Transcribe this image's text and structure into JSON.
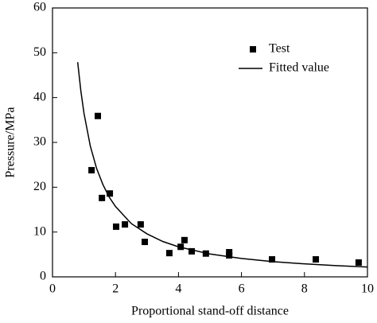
{
  "chart_data": {
    "type": "scatter",
    "xlabel": "Proportional stand-off distance",
    "ylabel": "Pressure/MPa",
    "xlim": [
      0,
      10
    ],
    "ylim": [
      0,
      60
    ],
    "xticks": [
      0,
      2,
      4,
      6,
      8,
      10
    ],
    "yticks": [
      0,
      10,
      20,
      30,
      40,
      50,
      60
    ],
    "legend": "upper right",
    "series": [
      {
        "name": "Test",
        "type": "scatter",
        "color": "#000000",
        "x": [
          1.24,
          1.44,
          1.57,
          1.82,
          2.02,
          2.3,
          2.8,
          2.93,
          3.71,
          4.07,
          4.19,
          4.42,
          4.87,
          5.61,
          5.61,
          6.97,
          8.36,
          9.72
        ],
        "values": [
          23.8,
          35.9,
          17.6,
          18.6,
          11.2,
          11.7,
          11.7,
          7.8,
          5.3,
          6.7,
          8.2,
          5.7,
          5.2,
          5.5,
          4.8,
          3.9,
          3.9,
          3.2
        ]
      },
      {
        "name": "Fitted value",
        "type": "line",
        "color": "#000000",
        "x": [
          0.8,
          0.9,
          1,
          1.2,
          1.4,
          1.6,
          1.8,
          2,
          2.5,
          3,
          3.5,
          4,
          5,
          6,
          7,
          8,
          9,
          10
        ],
        "values": [
          47.9,
          41.5,
          36.5,
          29.2,
          24.2,
          20.6,
          17.8,
          15.7,
          11.9,
          9.6,
          7.9,
          6.7,
          5.1,
          4.1,
          3.4,
          2.9,
          2.5,
          2.2
        ]
      }
    ]
  }
}
